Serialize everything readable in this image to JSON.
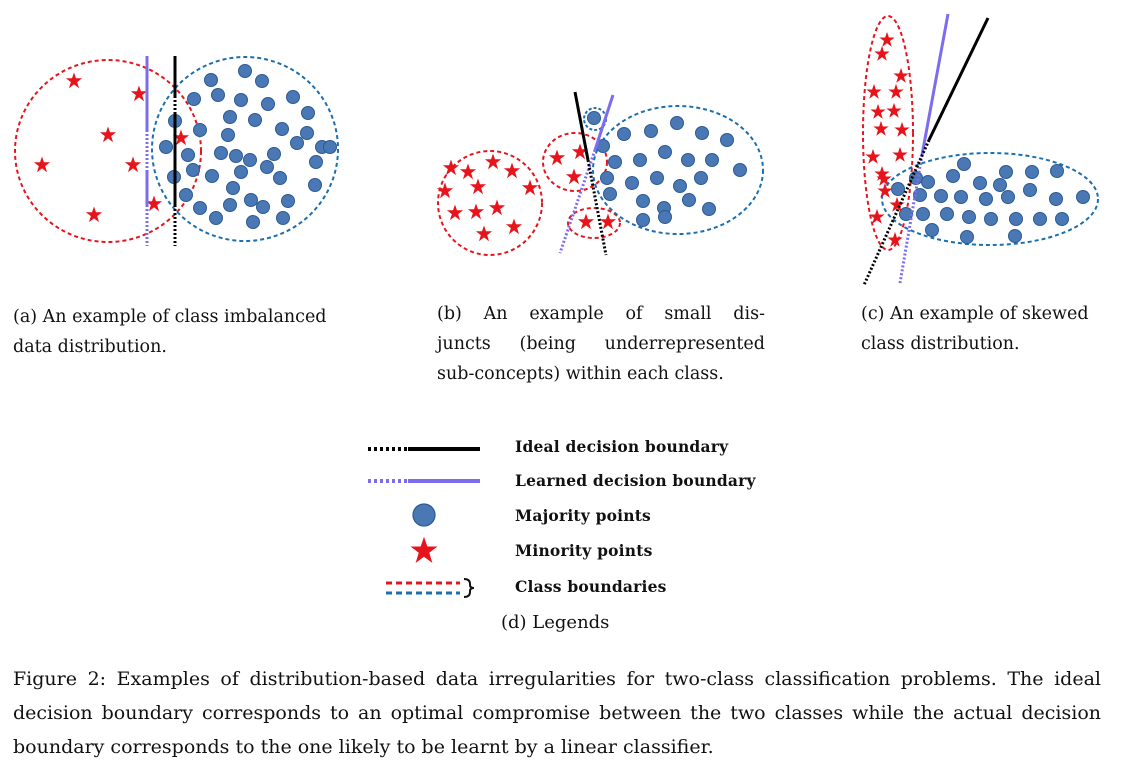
{
  "panels": {
    "a": {
      "caption": "(a) An example of class imbalanced data distribution.",
      "caption_lines": [
        "(a) An example of class imbalanced",
        "data distribution."
      ]
    },
    "b": {
      "caption": "(b) An example of small disjuncts (being underrepresented sub-concepts) within each class.",
      "caption_lines": [
        "(b)  An  example  of  small  dis-",
        "juncts  (being  underrepresented",
        "sub-concepts) within each class."
      ]
    },
    "c": {
      "caption": "(c) An example of skewed class distribution.",
      "caption_lines": [
        "(c) An example of skewed",
        "class distribution."
      ]
    }
  },
  "legend": {
    "items": [
      {
        "label": "Ideal decision boundary",
        "icon": "black-dotted-solid-line-icon"
      },
      {
        "label": "Learned decision boundary",
        "icon": "purple-dotted-solid-line-icon"
      },
      {
        "label": "Majority points",
        "icon": "blue-circle-icon"
      },
      {
        "label": "Minority points",
        "icon": "red-star-icon"
      },
      {
        "label": "Class boundaries",
        "icon": "red-blue-dashed-brace-icon"
      }
    ],
    "caption": "(d) Legends"
  },
  "figure_caption": {
    "text": "Figure 2: Examples of distribution-based data irregularities for two-class classification problems. The ideal decision boundary corresponds to an optimal compromise between the two classes while the actual decision boundary corresponds to the one likely to be learnt by a linear classifier.",
    "lines": [
      "Figure 2: Examples of distribution-based data irregularities for two-class classification problems. The ideal",
      "decision boundary corresponds to an optimal compromise between the two classes while the actual decision",
      "boundary corresponds to the one likely to be learnt by a linear classifier."
    ]
  },
  "colors": {
    "majority": "#4a78b5",
    "majority_stroke": "#2c5a92",
    "minority": "#e8141c",
    "class_boundary_red": "#e8141c",
    "class_boundary_blue": "#1a6fb0",
    "ideal": "#000000",
    "learned": "#7b6cf0"
  }
}
